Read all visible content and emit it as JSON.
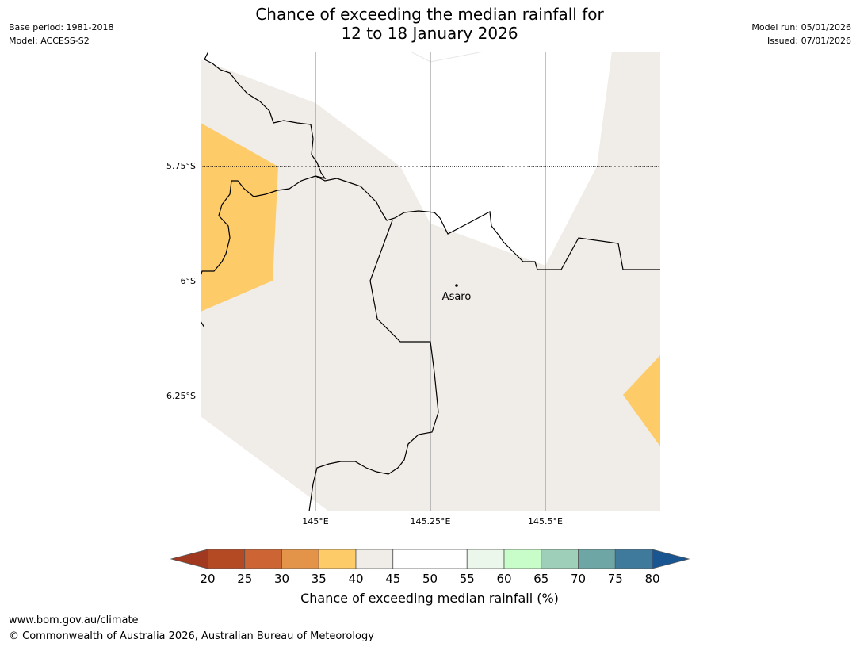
{
  "title_line1": "Chance of exceeding the median rainfall for",
  "title_line2": "12 to 18 January 2026",
  "meta_left": {
    "base_period": "Base period: 1981-2018",
    "model": "Model: ACCESS-S2"
  },
  "meta_right": {
    "model_run": "Model run: 05/01/2026",
    "issued": "Issued: 07/01/2026"
  },
  "map": {
    "lat_labels": [
      "5.75°S",
      "6°S",
      "6.25°S"
    ],
    "lon_labels": [
      "145°E",
      "145.25°E",
      "145.5°E"
    ],
    "place": {
      "name": "Asaro"
    }
  },
  "colorbar": {
    "ticks": [
      "20",
      "25",
      "30",
      "35",
      "40",
      "45",
      "50",
      "55",
      "60",
      "65",
      "70",
      "75",
      "80"
    ],
    "colors": [
      "#a0391f",
      "#b34a24",
      "#cc6433",
      "#e39448",
      "#fecb69",
      "#f0ece7",
      "#ffffff",
      "#ffffff",
      "#eaf7ea",
      "#c8fcc8",
      "#9ecfb8",
      "#6ea6a5",
      "#3f7a9c",
      "#185591"
    ],
    "label": "Chance of exceeding median rainfall (%)"
  },
  "footer": {
    "url": "www.bom.gov.au/climate",
    "copyright": "© Commonwealth of Australia 2026, Australian Bureau of Meteorology"
  }
}
